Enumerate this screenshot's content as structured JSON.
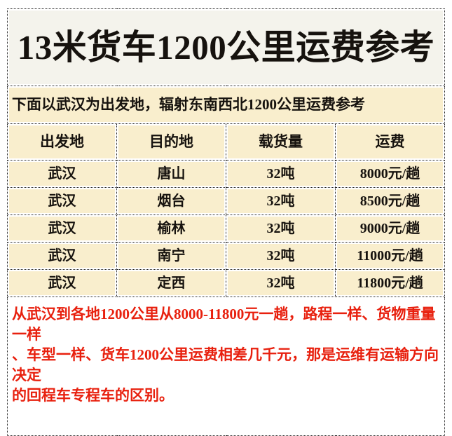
{
  "title": "13米货车1200公里运费参考",
  "subtitle": "下面以武汉为出发地，辐射东南西北1200公里运费参考",
  "table": {
    "headers": [
      "出发地",
      "目的地",
      "载货量",
      "运费"
    ],
    "rows": [
      [
        "武汉",
        "唐山",
        "32吨",
        "8000元/趟"
      ],
      [
        "武汉",
        "烟台",
        "32吨",
        "8500元/趟"
      ],
      [
        "武汉",
        "榆林",
        "32吨",
        "9000元/趟"
      ],
      [
        "武汉",
        "南宁",
        "32吨",
        "11000元/趟"
      ],
      [
        "武汉",
        "定西",
        "32吨",
        "11800元/趟"
      ]
    ]
  },
  "note": {
    "lines": [
      "从武汉到各地1200公里从8000-11800元一趟，路程一样、货物重量一样",
      "、车型一样、货车1200公里运费相差几千元，那是运维有运输方向决定",
      "的回程车专程车的区别。"
    ],
    "full_text": "从武汉到各地1200公里从8000-11800元一趟，路程一样、货物重量一样、车型一样、货车1200公里运费相差几千元，那是运维有运输方向决定的回程车专程车的区别。"
  },
  "colors": {
    "cream": "#f9eecd",
    "title_bg": "#f4f3ec",
    "note_red": "#e8200e",
    "border": "#222222",
    "text": "#16120e"
  }
}
